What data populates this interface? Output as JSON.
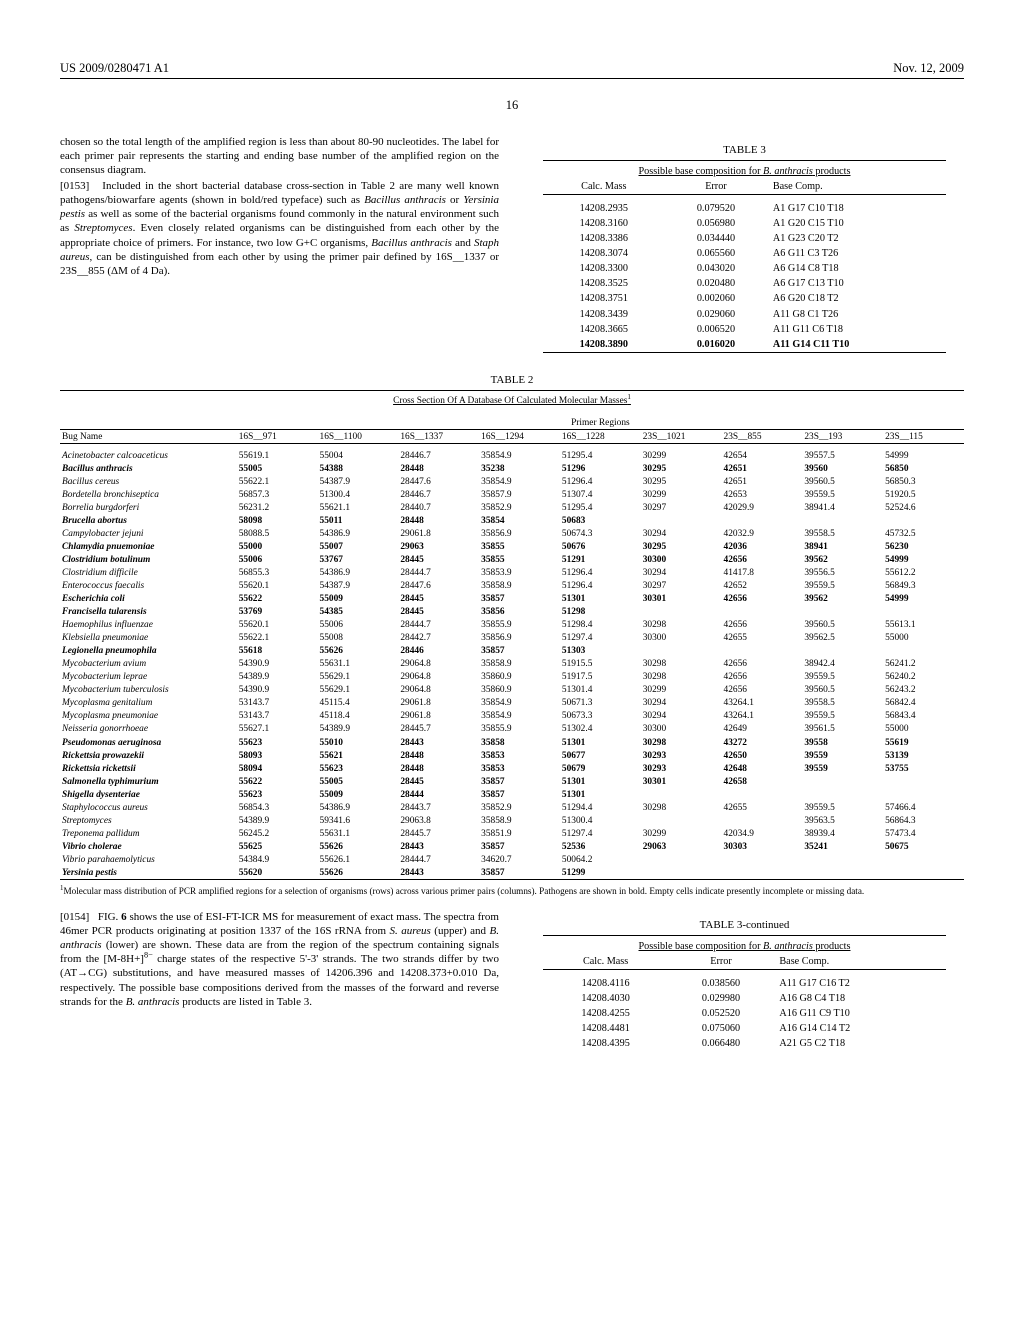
{
  "header": {
    "left": "US 2009/0280471 A1",
    "right": "Nov. 12, 2009",
    "page": "16"
  },
  "text": {
    "p1": "chosen so the total length of the amplified region is less than about 80-90 nucleotides. The label for each primer pair represents the starting and ending base number of the amplified region on the consensus diagram.",
    "p2num": "[0153]",
    "p2a": "Included in the short bacterial database cross-section in Table 2 are many well known pathogens/biowarfare agents (shown in bold/red typeface) such as ",
    "p2b": "Bacillus anthracis",
    "p2c": " or ",
    "p2d": "Yersinia pestis",
    "p2e": " as well as some of the bacterial organisms found commonly in the natural environment such as ",
    "p2f": "Streptomyces",
    "p2g": ". Even closely related organisms can be distinguished from each other by the appropriate choice of primers. For instance, two low G+C organisms, ",
    "p2h": "Bacillus anthracis",
    "p2i": " and ",
    "p2j": "Staph aureus",
    "p2k": ", can be distinguished from each other by using the primer pair defined by 16S__1337 or 23S__855 (ΔM of 4 Da).",
    "p3num": "[0154]",
    "p3a": "FIG. ",
    "p3b": "6",
    "p3c": " shows the use of ESI-FT-ICR MS for measurement of exact mass. The spectra from 46mer PCR products originating at position 1337 of the 16S rRNA from ",
    "p3d": "S. aureus",
    "p3e": " (upper) and ",
    "p3f": "B. anthracis",
    "p3g": " (lower) are shown. These data are from the region of the spectrum containing signals from the [M-8H+]",
    "p3h": "8−",
    "p3i": " charge states of the respective 5'-3' strands. The two strands differ by two (AT→CG) substitutions, and have measured masses of 14206.396 and 14208.373+0.010 Da, respectively. The possible base compositions derived from the masses of the forward and reverse strands for the ",
    "p3j": "B. anthracis",
    "p3k": " products are listed in Table 3."
  },
  "table3": {
    "label": "TABLE 3",
    "caption_a": "Possible base composition for ",
    "caption_b": "B. anthracis",
    "caption_c": " products",
    "headers": [
      "Calc. Mass",
      "Error",
      "Base Comp."
    ],
    "rows": [
      {
        "c": [
          "14208.2935",
          "0.079520",
          "A1 G17 C10 T18"
        ],
        "b": false
      },
      {
        "c": [
          "14208.3160",
          "0.056980",
          "A1 G20 C15 T10"
        ],
        "b": false
      },
      {
        "c": [
          "14208.3386",
          "0.034440",
          "A1 G23 C20 T2"
        ],
        "b": false
      },
      {
        "c": [
          "14208.3074",
          "0.065560",
          "A6 G11 C3 T26"
        ],
        "b": false
      },
      {
        "c": [
          "14208.3300",
          "0.043020",
          "A6 G14 C8 T18"
        ],
        "b": false
      },
      {
        "c": [
          "14208.3525",
          "0.020480",
          "A6 G17 C13 T10"
        ],
        "b": false
      },
      {
        "c": [
          "14208.3751",
          "0.002060",
          "A6 G20 C18 T2"
        ],
        "b": false
      },
      {
        "c": [
          "14208.3439",
          "0.029060",
          "A11 G8 C1 T26"
        ],
        "b": false
      },
      {
        "c": [
          "14208.3665",
          "0.006520",
          "A11 G11 C6 T18"
        ],
        "b": false
      },
      {
        "c": [
          "14208.3890",
          "0.016020",
          "A11 G14 C11 T10"
        ],
        "b": true
      }
    ]
  },
  "table3cont": {
    "label": "TABLE 3-continued",
    "rows": [
      {
        "c": [
          "14208.4116",
          "0.038560",
          "A11 G17 C16 T2"
        ]
      },
      {
        "c": [
          "14208.4030",
          "0.029980",
          "A16 G8 C4 T18"
        ]
      },
      {
        "c": [
          "14208.4255",
          "0.052520",
          "A16 G11 C9 T10"
        ]
      },
      {
        "c": [
          "14208.4481",
          "0.075060",
          "A16 G14 C14 T2"
        ]
      },
      {
        "c": [
          "14208.4395",
          "0.066480",
          "A21 G5 C2 T18"
        ]
      }
    ]
  },
  "table2": {
    "label": "TABLE 2",
    "caption": "Cross Section Of A Database Of Calculated Molecular Masses",
    "sup": "1",
    "group_header": "Primer Regions",
    "name_header": "Bug Name",
    "cols": [
      "16S__971",
      "16S__1100",
      "16S__1337",
      "16S__1294",
      "16S__1228",
      "23S__1021",
      "23S__855",
      "23S__193",
      "23S__115"
    ],
    "rows": [
      {
        "n": "Acinetobacter calcoaceticus",
        "b": false,
        "v": [
          "55619.1",
          "55004",
          "28446.7",
          "35854.9",
          "51295.4",
          "30299",
          "42654",
          "39557.5",
          "54999"
        ]
      },
      {
        "n": "Bacillus anthracis",
        "b": true,
        "v": [
          "55005",
          "54388",
          "28448",
          "35238",
          "51296",
          "30295",
          "42651",
          "39560",
          "56850"
        ]
      },
      {
        "n": "Bacillus cereus",
        "b": false,
        "v": [
          "55622.1",
          "54387.9",
          "28447.6",
          "35854.9",
          "51296.4",
          "30295",
          "42651",
          "39560.5",
          "56850.3"
        ]
      },
      {
        "n": "Bordetella bronchiseptica",
        "b": false,
        "v": [
          "56857.3",
          "51300.4",
          "28446.7",
          "35857.9",
          "51307.4",
          "30299",
          "42653",
          "39559.5",
          "51920.5"
        ]
      },
      {
        "n": "Borrelia burgdorferi",
        "b": false,
        "v": [
          "56231.2",
          "55621.1",
          "28440.7",
          "35852.9",
          "51295.4",
          "30297",
          "42029.9",
          "38941.4",
          "52524.6"
        ]
      },
      {
        "n": "Brucella abortus",
        "b": true,
        "v": [
          "58098",
          "55011",
          "28448",
          "35854",
          "50683",
          "",
          "",
          "",
          ""
        ]
      },
      {
        "n": "Campylobacter jejuni",
        "b": false,
        "v": [
          "58088.5",
          "54386.9",
          "29061.8",
          "35856.9",
          "50674.3",
          "30294",
          "42032.9",
          "39558.5",
          "45732.5"
        ]
      },
      {
        "n": "Chlamydia pnuemoniae",
        "b": true,
        "v": [
          "55000",
          "55007",
          "29063",
          "35855",
          "50676",
          "30295",
          "42036",
          "38941",
          "56230"
        ]
      },
      {
        "n": "Clostridium botulinum",
        "b": true,
        "v": [
          "55006",
          "53767",
          "28445",
          "35855",
          "51291",
          "30300",
          "42656",
          "39562",
          "54999"
        ]
      },
      {
        "n": "Clostridium difficile",
        "b": false,
        "v": [
          "56855.3",
          "54386.9",
          "28444.7",
          "35853.9",
          "51296.4",
          "30294",
          "41417.8",
          "39556.5",
          "55612.2"
        ]
      },
      {
        "n": "Enterococcus faecalis",
        "b": false,
        "v": [
          "55620.1",
          "54387.9",
          "28447.6",
          "35858.9",
          "51296.4",
          "30297",
          "42652",
          "39559.5",
          "56849.3"
        ]
      },
      {
        "n": "Escherichia coli",
        "b": true,
        "v": [
          "55622",
          "55009",
          "28445",
          "35857",
          "51301",
          "30301",
          "42656",
          "39562",
          "54999"
        ]
      },
      {
        "n": "Francisella tularensis",
        "b": true,
        "v": [
          "53769",
          "54385",
          "28445",
          "35856",
          "51298",
          "",
          "",
          "",
          ""
        ]
      },
      {
        "n": "Haemophilus influenzae",
        "b": false,
        "v": [
          "55620.1",
          "55006",
          "28444.7",
          "35855.9",
          "51298.4",
          "30298",
          "42656",
          "39560.5",
          "55613.1"
        ]
      },
      {
        "n": "Klebsiella pneumoniae",
        "b": false,
        "v": [
          "55622.1",
          "55008",
          "28442.7",
          "35856.9",
          "51297.4",
          "30300",
          "42655",
          "39562.5",
          "55000"
        ]
      },
      {
        "n": "Legionella pneumophila",
        "b": true,
        "v": [
          "55618",
          "55626",
          "28446",
          "35857",
          "51303",
          "",
          "",
          "",
          ""
        ]
      },
      {
        "n": "Mycobacterium avium",
        "b": false,
        "v": [
          "54390.9",
          "55631.1",
          "29064.8",
          "35858.9",
          "51915.5",
          "30298",
          "42656",
          "38942.4",
          "56241.2"
        ]
      },
      {
        "n": "Mycobacterium leprae",
        "b": false,
        "v": [
          "54389.9",
          "55629.1",
          "29064.8",
          "35860.9",
          "51917.5",
          "30298",
          "42656",
          "39559.5",
          "56240.2"
        ]
      },
      {
        "n": "Mycobacterium tuberculosis",
        "b": false,
        "v": [
          "54390.9",
          "55629.1",
          "29064.8",
          "35860.9",
          "51301.4",
          "30299",
          "42656",
          "39560.5",
          "56243.2"
        ]
      },
      {
        "n": "Mycoplasma genitalium",
        "b": false,
        "v": [
          "53143.7",
          "45115.4",
          "29061.8",
          "35854.9",
          "50671.3",
          "30294",
          "43264.1",
          "39558.5",
          "56842.4"
        ]
      },
      {
        "n": "Mycoplasma pneumoniae",
        "b": false,
        "v": [
          "53143.7",
          "45118.4",
          "29061.8",
          "35854.9",
          "50673.3",
          "30294",
          "43264.1",
          "39559.5",
          "56843.4"
        ]
      },
      {
        "n": "Neisseria gonorrhoeae",
        "b": false,
        "v": [
          "55627.1",
          "54389.9",
          "28445.7",
          "35855.9",
          "51302.4",
          "30300",
          "42649",
          "39561.5",
          "55000"
        ]
      },
      {
        "n": "Pseudomonas aeruginosa",
        "b": true,
        "v": [
          "55623",
          "55010",
          "28443",
          "35858",
          "51301",
          "30298",
          "43272",
          "39558",
          "55619"
        ]
      },
      {
        "n": "Rickettsia prowazekii",
        "b": true,
        "v": [
          "58093",
          "55621",
          "28448",
          "35853",
          "50677",
          "30293",
          "42650",
          "39559",
          "53139"
        ]
      },
      {
        "n": "Rickettsia rickettsii",
        "b": true,
        "v": [
          "58094",
          "55623",
          "28448",
          "35853",
          "50679",
          "30293",
          "42648",
          "39559",
          "53755"
        ]
      },
      {
        "n": "Salmonella typhimurium",
        "b": true,
        "v": [
          "55622",
          "55005",
          "28445",
          "35857",
          "51301",
          "30301",
          "42658",
          "",
          ""
        ]
      },
      {
        "n": "Shigella dysenteriae",
        "b": true,
        "v": [
          "55623",
          "55009",
          "28444",
          "35857",
          "51301",
          "",
          "",
          "",
          ""
        ]
      },
      {
        "n": "Staphylococcus aureus",
        "b": false,
        "v": [
          "56854.3",
          "54386.9",
          "28443.7",
          "35852.9",
          "51294.4",
          "30298",
          "42655",
          "39559.5",
          "57466.4"
        ]
      },
      {
        "n": "Streptomyces",
        "b": false,
        "v": [
          "54389.9",
          "59341.6",
          "29063.8",
          "35858.9",
          "51300.4",
          "",
          "",
          "39563.5",
          "56864.3"
        ]
      },
      {
        "n": "Treponema pallidum",
        "b": false,
        "v": [
          "56245.2",
          "55631.1",
          "28445.7",
          "35851.9",
          "51297.4",
          "30299",
          "42034.9",
          "38939.4",
          "57473.4"
        ]
      },
      {
        "n": "Vibrio cholerae",
        "b": true,
        "v": [
          "55625",
          "55626",
          "28443",
          "35857",
          "52536",
          "29063",
          "30303",
          "35241",
          "50675"
        ]
      },
      {
        "n": "Vibrio parahaemolyticus",
        "b": false,
        "v": [
          "54384.9",
          "55626.1",
          "28444.7",
          "34620.7",
          "50064.2",
          "",
          "",
          "",
          ""
        ]
      },
      {
        "n": "Yersinia pestis",
        "b": true,
        "v": [
          "55620",
          "55626",
          "28443",
          "35857",
          "51299",
          "",
          "",
          "",
          ""
        ]
      }
    ],
    "footnote_sup": "1",
    "footnote": "Molecular mass distribution of PCR amplified regions for a selection of organisms (rows) across various primer pairs (columns). Pathogens are shown in bold. Empty cells indicate presently incomplete or missing data."
  }
}
